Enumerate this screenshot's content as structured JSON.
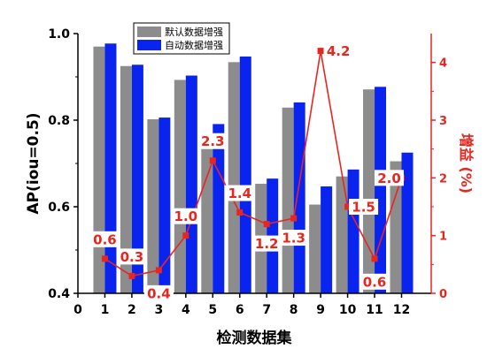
{
  "chart_data": {
    "type": "bar",
    "categories": [
      "1",
      "2",
      "3",
      "4",
      "5",
      "6",
      "7",
      "8",
      "9",
      "10",
      "11",
      "12"
    ],
    "x_ticks": [
      "0",
      "1",
      "2",
      "3",
      "4",
      "5",
      "6",
      "7",
      "8",
      "9",
      "10",
      "11",
      "12"
    ],
    "xlabel": "检测数据集",
    "ylabel": "AP(iou=0.5)",
    "y2label": "增益 (%)",
    "ylim": [
      0.4,
      1.0
    ],
    "y_ticks": [
      "0.4",
      "0.6",
      "0.8",
      "1.0"
    ],
    "y2lim": [
      0,
      4.5
    ],
    "y2_ticks": [
      "0",
      "1",
      "2",
      "3",
      "4"
    ],
    "series": [
      {
        "name": "默认数据增强",
        "type": "bar",
        "color": "#8c8c8c",
        "values": [
          0.97,
          0.925,
          0.802,
          0.893,
          0.768,
          0.934,
          0.653,
          0.829,
          0.605,
          0.67,
          0.871,
          0.705
        ]
      },
      {
        "name": "自动数据增强",
        "type": "bar",
        "color": "#0a24f0",
        "values": [
          0.977,
          0.928,
          0.806,
          0.903,
          0.791,
          0.947,
          0.665,
          0.841,
          0.647,
          0.686,
          0.877,
          0.725
        ]
      },
      {
        "type": "line",
        "axis": "right",
        "color": "#e8261f",
        "values": [
          0.6,
          0.3,
          0.4,
          1.0,
          2.3,
          1.4,
          1.2,
          1.3,
          4.2,
          1.5,
          0.6,
          2.0
        ],
        "labels": [
          "0.6",
          "0.3",
          "0.4",
          "1.0",
          "2.3",
          "1.4",
          "1.2",
          "1.3",
          "4.2",
          "1.5",
          "0.6",
          "2.0"
        ]
      }
    ],
    "legend": {
      "position": "top",
      "labels": [
        "默认数据增强",
        "自动数据增强"
      ]
    }
  }
}
